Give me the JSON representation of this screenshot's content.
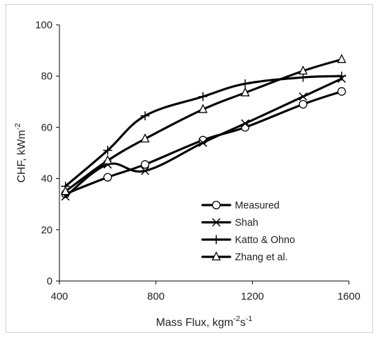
{
  "chart_data": {
    "type": "line",
    "xlabel": "Mass Flux, kgm",
    "xlabel_sup1": "-2",
    "xlabel_mid": "s",
    "xlabel_sup2": "-1",
    "ylabel": "CHF, kWm",
    "ylabel_sup": "-2",
    "xlim": [
      400,
      1600
    ],
    "ylim": [
      0,
      100
    ],
    "x_ticks": [
      400,
      800,
      1200,
      1600
    ],
    "y_ticks": [
      0,
      20,
      40,
      60,
      80,
      100
    ],
    "grid": false,
    "legend_position": "bottom-right",
    "series": [
      {
        "name": "Measured",
        "marker": "circle",
        "x": [
          425,
          600,
          755,
          995,
          1170,
          1410,
          1570
        ],
        "y": [
          34,
          40.5,
          45.5,
          55,
          60,
          69,
          74
        ]
      },
      {
        "name": "Shah",
        "marker": "x",
        "x": [
          425,
          600,
          755,
          995,
          1170,
          1410,
          1570
        ],
        "y": [
          33,
          45.5,
          43,
          54,
          61.5,
          72,
          79
        ]
      },
      {
        "name": "Katto & Ohno",
        "marker": "plus",
        "x": [
          425,
          600,
          755,
          995,
          1170,
          1410,
          1570
        ],
        "y": [
          37,
          51,
          64.5,
          72,
          77,
          79.5,
          80
        ]
      },
      {
        "name": "Zhang et al.",
        "marker": "triangle",
        "x": [
          425,
          600,
          755,
          995,
          1170,
          1410,
          1570
        ],
        "y": [
          35,
          47,
          55.5,
          67,
          73.5,
          82,
          86.5
        ]
      }
    ]
  }
}
